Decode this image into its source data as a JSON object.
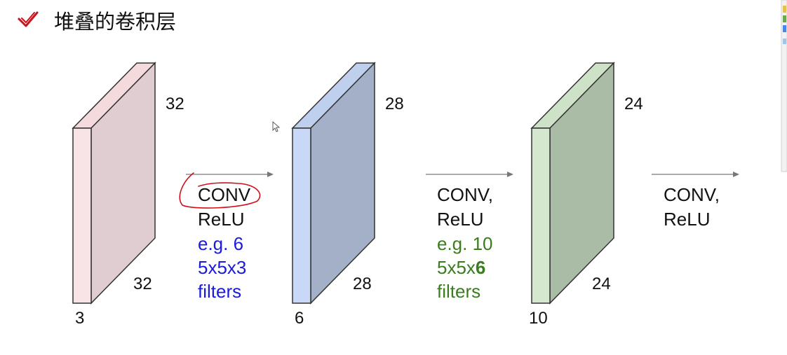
{
  "title": "堆叠的卷积层",
  "colors": {
    "check": "#c8141e",
    "annotation": "#d0101c",
    "arrow": "#777777",
    "text": "#111111",
    "blue_text": "#1a1ae0",
    "green_text": "#3a7d1e"
  },
  "volumes": [
    {
      "width": "32",
      "height": "32",
      "depth": "3",
      "front": "#f8e4e6",
      "side": "#dfcdd1",
      "top": "#f4dadd"
    },
    {
      "width": "28",
      "height": "28",
      "depth": "6",
      "front": "#c9d8f6",
      "side": "#a3b0c8",
      "top": "#bfd0ef"
    },
    {
      "width": "24",
      "height": "24",
      "depth": "10",
      "front": "#d5e8cf",
      "side": "#aabca6",
      "top": "#cde2c6"
    }
  ],
  "ops": [
    {
      "line1": "CONV",
      "line2": "ReLU",
      "line3": "e.g. 6",
      "line4_a": "5x5x3",
      "line4_b": "",
      "line5": "filters"
    },
    {
      "line1": "CONV,",
      "line2": "ReLU",
      "line3": "e.g. 10",
      "line4_a": "5x5x",
      "line4_b": "6",
      "line5": "filters"
    },
    {
      "line1": "CONV,",
      "line2": "ReLU"
    }
  ]
}
